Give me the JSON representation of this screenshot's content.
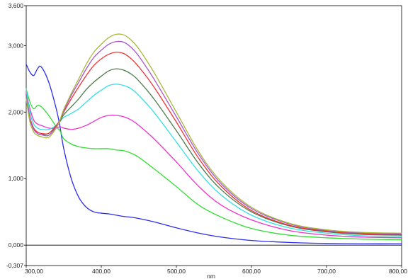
{
  "chart_data": {
    "type": "line",
    "xlabel": "nm",
    "ylabel": "",
    "xlim": [
      300,
      800
    ],
    "ylim": [
      -0.307,
      3.6
    ],
    "x_ticks": [
      300,
      400,
      500,
      600,
      700,
      800
    ],
    "x_tick_labels": [
      "300,00",
      "400,00",
      "500,00",
      "600,00",
      "700,00",
      "800,00"
    ],
    "y_ticks": [
      -0.307,
      0,
      1,
      2,
      3,
      3.6
    ],
    "y_tick_labels": [
      "-0,307",
      "0,000",
      "1,000",
      "2,000",
      "3,000",
      "3,600"
    ],
    "grid": false,
    "baseline": 0,
    "series": [
      {
        "color": "#2c2cf0",
        "x": [
          300,
          305,
          310,
          315,
          320,
          330,
          340,
          345,
          350,
          360,
          370,
          380,
          390,
          400,
          410,
          420,
          430,
          440,
          450,
          470,
          500,
          530,
          560,
          600,
          650,
          700,
          750,
          800
        ],
        "y": [
          2.72,
          2.6,
          2.55,
          2.65,
          2.68,
          2.45,
          2.05,
          1.78,
          1.45,
          1.0,
          0.72,
          0.57,
          0.5,
          0.48,
          0.47,
          0.45,
          0.43,
          0.42,
          0.4,
          0.35,
          0.26,
          0.18,
          0.12,
          0.07,
          0.04,
          0.025,
          0.02,
          0.02
        ]
      },
      {
        "color": "#33dd33",
        "x": [
          300,
          305,
          310,
          315,
          320,
          330,
          340,
          345,
          350,
          360,
          370,
          380,
          390,
          400,
          410,
          420,
          430,
          440,
          450,
          470,
          500,
          530,
          560,
          600,
          650,
          700,
          750,
          800
        ],
        "y": [
          2.35,
          2.15,
          2.05,
          2.1,
          2.08,
          1.95,
          1.78,
          1.72,
          1.6,
          1.52,
          1.48,
          1.46,
          1.45,
          1.45,
          1.45,
          1.43,
          1.42,
          1.38,
          1.32,
          1.15,
          0.88,
          0.6,
          0.42,
          0.25,
          0.15,
          0.11,
          0.09,
          0.08
        ]
      },
      {
        "color": "#ee33cc",
        "x": [
          300,
          305,
          310,
          315,
          320,
          330,
          340,
          345,
          350,
          360,
          370,
          380,
          390,
          400,
          410,
          420,
          430,
          440,
          450,
          470,
          500,
          530,
          560,
          600,
          650,
          700,
          750,
          800
        ],
        "y": [
          2.3,
          2.05,
          1.88,
          1.82,
          1.8,
          1.76,
          1.76,
          1.78,
          1.76,
          1.74,
          1.76,
          1.8,
          1.86,
          1.92,
          1.95,
          1.95,
          1.93,
          1.88,
          1.8,
          1.6,
          1.25,
          0.88,
          0.6,
          0.38,
          0.22,
          0.15,
          0.12,
          0.11
        ]
      },
      {
        "color": "#33e0e8",
        "x": [
          300,
          305,
          310,
          315,
          320,
          330,
          340,
          345,
          350,
          360,
          370,
          380,
          390,
          400,
          410,
          420,
          430,
          440,
          450,
          470,
          500,
          530,
          560,
          600,
          650,
          700,
          750,
          800
        ],
        "y": [
          2.35,
          2.0,
          1.82,
          1.76,
          1.74,
          1.74,
          1.8,
          1.86,
          1.92,
          1.98,
          2.05,
          2.15,
          2.25,
          2.33,
          2.4,
          2.42,
          2.4,
          2.35,
          2.25,
          2.0,
          1.55,
          1.1,
          0.75,
          0.45,
          0.26,
          0.18,
          0.14,
          0.13
        ]
      },
      {
        "color": "#4a7a4a",
        "x": [
          300,
          305,
          310,
          315,
          320,
          330,
          340,
          345,
          350,
          360,
          370,
          380,
          390,
          400,
          410,
          420,
          430,
          440,
          450,
          470,
          500,
          530,
          560,
          600,
          650,
          700,
          750,
          800
        ],
        "y": [
          2.2,
          1.9,
          1.74,
          1.68,
          1.66,
          1.68,
          1.78,
          1.86,
          1.96,
          2.08,
          2.2,
          2.34,
          2.45,
          2.54,
          2.62,
          2.65,
          2.63,
          2.57,
          2.47,
          2.2,
          1.72,
          1.22,
          0.83,
          0.5,
          0.29,
          0.2,
          0.16,
          0.15
        ]
      },
      {
        "color": "#ee3333",
        "x": [
          300,
          305,
          310,
          315,
          320,
          330,
          340,
          345,
          350,
          360,
          370,
          380,
          390,
          400,
          410,
          420,
          430,
          440,
          450,
          470,
          500,
          530,
          560,
          600,
          650,
          700,
          750,
          800
        ],
        "y": [
          2.25,
          1.92,
          1.76,
          1.7,
          1.68,
          1.68,
          1.8,
          1.88,
          2.0,
          2.2,
          2.38,
          2.55,
          2.7,
          2.8,
          2.87,
          2.9,
          2.88,
          2.8,
          2.68,
          2.38,
          1.85,
          1.3,
          0.88,
          0.52,
          0.3,
          0.21,
          0.17,
          0.16
        ]
      },
      {
        "color": "#aa55cc",
        "x": [
          300,
          305,
          310,
          315,
          320,
          330,
          340,
          345,
          350,
          360,
          370,
          380,
          390,
          400,
          410,
          420,
          430,
          440,
          450,
          470,
          500,
          530,
          560,
          600,
          650,
          700,
          750,
          800
        ],
        "y": [
          2.25,
          1.9,
          1.74,
          1.68,
          1.66,
          1.65,
          1.78,
          1.88,
          2.02,
          2.25,
          2.45,
          2.65,
          2.82,
          2.93,
          3.02,
          3.06,
          3.05,
          2.97,
          2.84,
          2.5,
          1.93,
          1.36,
          0.92,
          0.55,
          0.32,
          0.22,
          0.18,
          0.17
        ]
      },
      {
        "color": "#a8b83a",
        "x": [
          300,
          305,
          310,
          315,
          320,
          330,
          340,
          345,
          350,
          360,
          370,
          380,
          390,
          400,
          410,
          420,
          430,
          440,
          450,
          470,
          500,
          530,
          560,
          600,
          650,
          700,
          750,
          800
        ],
        "y": [
          2.2,
          1.85,
          1.7,
          1.65,
          1.63,
          1.62,
          1.76,
          1.88,
          2.04,
          2.28,
          2.5,
          2.72,
          2.9,
          3.02,
          3.12,
          3.17,
          3.16,
          3.08,
          2.95,
          2.6,
          2.0,
          1.4,
          0.95,
          0.57,
          0.33,
          0.23,
          0.19,
          0.18
        ]
      }
    ]
  }
}
